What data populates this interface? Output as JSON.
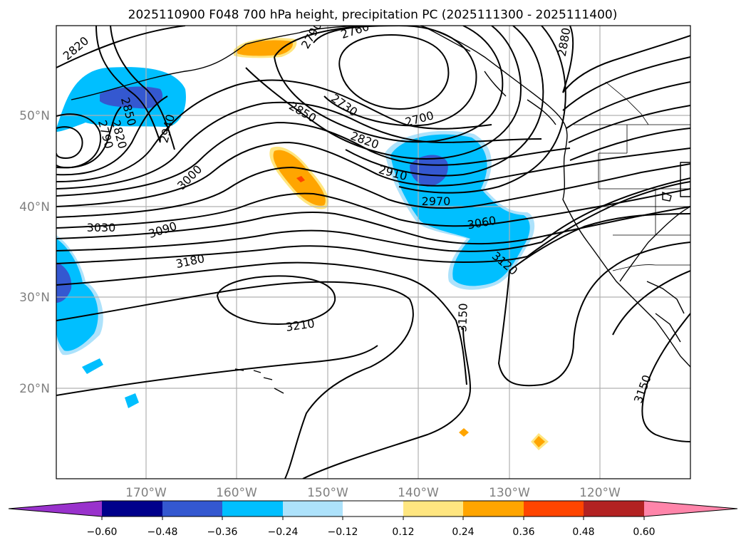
{
  "title": "2025110900 F048 700 hPa height, precipitation PC (2025111300 - 2025111400)",
  "colors": {
    "c_neg060": "#9932cc",
    "c_neg048": "#00008b",
    "c_neg036": "#3458d0",
    "c_neg024": "#00bfff",
    "c_neg012": "#ade2fb",
    "c_zero": "#ffffff",
    "c_pos012": "#ffe680",
    "c_pos024": "#ffa500",
    "c_pos036": "#ff4500",
    "c_pos048": "#b22222",
    "c_pos060": "#ff85aa"
  },
  "lat_labels": [
    "50°N",
    "40°N",
    "30°N",
    "20°N"
  ],
  "lon_labels": [
    "170°W",
    "160°W",
    "150°W",
    "140°W",
    "130°W",
    "120°W"
  ],
  "colorbar_ticks": [
    "−0.60",
    "−0.48",
    "−0.36",
    "−0.24",
    "−0.12",
    "0.12",
    "0.24",
    "0.36",
    "0.48",
    "0.60"
  ],
  "contour_labels": [
    "2820",
    "2850",
    "2820",
    "2790",
    "2940",
    "3000",
    "3030",
    "3090",
    "3180",
    "3210",
    "2790",
    "2760",
    "2730",
    "2850",
    "2820",
    "2700",
    "2910",
    "2970",
    "3060",
    "3120",
    "3150",
    "2880",
    "3150"
  ]
}
